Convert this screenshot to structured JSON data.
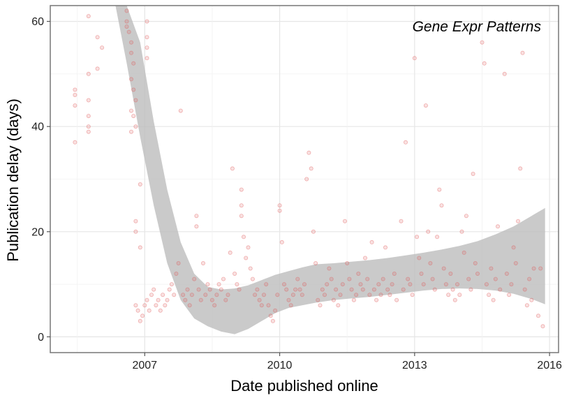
{
  "chart_data": {
    "type": "scatter",
    "title": "Gene Expr Patterns",
    "xlabel": "Date published online",
    "ylabel": "Publication delay (days)",
    "x_unit": "year",
    "xlim": [
      2004.9,
      2016.2
    ],
    "ylim": [
      -3,
      63
    ],
    "x_ticks": [
      {
        "value": 2007,
        "label": "2007"
      },
      {
        "value": 2010,
        "label": "2010"
      },
      {
        "value": 2013,
        "label": "2013"
      },
      {
        "value": 2016,
        "label": "2016"
      }
    ],
    "y_ticks": [
      {
        "value": 0,
        "label": "0"
      },
      {
        "value": 20,
        "label": "20"
      },
      {
        "value": 40,
        "label": "40"
      },
      {
        "value": 60,
        "label": "60"
      }
    ],
    "grid": true,
    "point_color": "#e05a5a",
    "band_color": "#bdbdbd",
    "points": [
      [
        2005.45,
        37
      ],
      [
        2005.45,
        44
      ],
      [
        2005.45,
        46
      ],
      [
        2005.45,
        47
      ],
      [
        2005.75,
        61
      ],
      [
        2005.75,
        50
      ],
      [
        2005.75,
        45
      ],
      [
        2005.75,
        42
      ],
      [
        2005.75,
        40
      ],
      [
        2005.75,
        39
      ],
      [
        2005.95,
        57
      ],
      [
        2005.95,
        51
      ],
      [
        2006.05,
        55
      ],
      [
        2006.6,
        62
      ],
      [
        2006.6,
        60
      ],
      [
        2006.6,
        59
      ],
      [
        2006.65,
        58
      ],
      [
        2006.7,
        56
      ],
      [
        2006.7,
        54
      ],
      [
        2006.75,
        52
      ],
      [
        2006.7,
        49
      ],
      [
        2006.75,
        47
      ],
      [
        2006.8,
        45
      ],
      [
        2006.7,
        43
      ],
      [
        2006.75,
        42
      ],
      [
        2006.8,
        40
      ],
      [
        2006.7,
        39
      ],
      [
        2006.8,
        22
      ],
      [
        2006.8,
        20
      ],
      [
        2006.9,
        29
      ],
      [
        2006.9,
        17
      ],
      [
        2007.05,
        60
      ],
      [
        2007.05,
        57
      ],
      [
        2007.05,
        55
      ],
      [
        2007.05,
        53
      ],
      [
        2006.8,
        6
      ],
      [
        2006.85,
        5
      ],
      [
        2006.9,
        3
      ],
      [
        2006.95,
        4
      ],
      [
        2007.0,
        6
      ],
      [
        2007.05,
        7
      ],
      [
        2007.1,
        5
      ],
      [
        2007.15,
        8
      ],
      [
        2007.2,
        9
      ],
      [
        2007.25,
        6
      ],
      [
        2007.3,
        7
      ],
      [
        2007.35,
        5
      ],
      [
        2007.4,
        8
      ],
      [
        2007.45,
        6
      ],
      [
        2007.5,
        7
      ],
      [
        2007.55,
        9
      ],
      [
        2007.6,
        10
      ],
      [
        2007.65,
        8
      ],
      [
        2007.7,
        12
      ],
      [
        2007.75,
        14
      ],
      [
        2007.8,
        43
      ],
      [
        2007.85,
        8
      ],
      [
        2007.9,
        7
      ],
      [
        2007.95,
        9
      ],
      [
        2008.0,
        6
      ],
      [
        2008.05,
        8
      ],
      [
        2008.1,
        11
      ],
      [
        2008.15,
        23
      ],
      [
        2008.15,
        21
      ],
      [
        2008.2,
        9
      ],
      [
        2008.25,
        7
      ],
      [
        2008.3,
        14
      ],
      [
        2008.35,
        8
      ],
      [
        2008.4,
        10
      ],
      [
        2008.45,
        9
      ],
      [
        2008.5,
        7
      ],
      [
        2008.55,
        6
      ],
      [
        2008.6,
        8
      ],
      [
        2008.65,
        10
      ],
      [
        2008.7,
        9
      ],
      [
        2008.75,
        11
      ],
      [
        2008.8,
        7
      ],
      [
        2008.85,
        8
      ],
      [
        2008.9,
        16
      ],
      [
        2008.95,
        32
      ],
      [
        2009.0,
        12
      ],
      [
        2009.05,
        10
      ],
      [
        2009.1,
        9
      ],
      [
        2009.15,
        28
      ],
      [
        2009.15,
        25
      ],
      [
        2009.15,
        23
      ],
      [
        2009.2,
        19
      ],
      [
        2009.25,
        15
      ],
      [
        2009.3,
        17
      ],
      [
        2009.35,
        13
      ],
      [
        2009.4,
        11
      ],
      [
        2009.45,
        8
      ],
      [
        2009.5,
        9
      ],
      [
        2009.55,
        7
      ],
      [
        2009.6,
        6
      ],
      [
        2009.65,
        8
      ],
      [
        2009.7,
        10
      ],
      [
        2009.75,
        6
      ],
      [
        2009.8,
        4
      ],
      [
        2009.85,
        3
      ],
      [
        2009.9,
        5
      ],
      [
        2009.95,
        8
      ],
      [
        2010.0,
        25
      ],
      [
        2010.0,
        24
      ],
      [
        2010.05,
        18
      ],
      [
        2010.1,
        10
      ],
      [
        2010.15,
        9
      ],
      [
        2010.2,
        7
      ],
      [
        2010.25,
        6
      ],
      [
        2010.3,
        8
      ],
      [
        2010.35,
        9
      ],
      [
        2010.4,
        11
      ],
      [
        2010.45,
        9
      ],
      [
        2010.5,
        8
      ],
      [
        2010.55,
        10
      ],
      [
        2010.6,
        30
      ],
      [
        2010.65,
        35
      ],
      [
        2010.7,
        32
      ],
      [
        2010.75,
        20
      ],
      [
        2010.8,
        14
      ],
      [
        2010.85,
        7
      ],
      [
        2010.9,
        6
      ],
      [
        2010.95,
        9
      ],
      [
        2011.0,
        8
      ],
      [
        2011.05,
        10
      ],
      [
        2011.1,
        13
      ],
      [
        2011.15,
        11
      ],
      [
        2011.2,
        7
      ],
      [
        2011.25,
        9
      ],
      [
        2011.3,
        6
      ],
      [
        2011.35,
        8
      ],
      [
        2011.4,
        10
      ],
      [
        2011.45,
        22
      ],
      [
        2011.5,
        14
      ],
      [
        2011.55,
        11
      ],
      [
        2011.6,
        9
      ],
      [
        2011.65,
        7
      ],
      [
        2011.7,
        8
      ],
      [
        2011.75,
        12
      ],
      [
        2011.8,
        10
      ],
      [
        2011.85,
        9
      ],
      [
        2011.9,
        15
      ],
      [
        2011.95,
        11
      ],
      [
        2012.0,
        8
      ],
      [
        2012.05,
        18
      ],
      [
        2012.1,
        9
      ],
      [
        2012.15,
        7
      ],
      [
        2012.2,
        10
      ],
      [
        2012.25,
        8
      ],
      [
        2012.3,
        11
      ],
      [
        2012.35,
        17
      ],
      [
        2012.4,
        9
      ],
      [
        2012.45,
        8
      ],
      [
        2012.5,
        10
      ],
      [
        2012.55,
        12
      ],
      [
        2012.6,
        7
      ],
      [
        2012.7,
        22
      ],
      [
        2012.75,
        9
      ],
      [
        2012.8,
        37
      ],
      [
        2012.85,
        11
      ],
      [
        2012.9,
        10
      ],
      [
        2012.95,
        8
      ],
      [
        2013.0,
        53
      ],
      [
        2013.05,
        19
      ],
      [
        2013.1,
        15
      ],
      [
        2013.15,
        12
      ],
      [
        2013.2,
        10
      ],
      [
        2013.25,
        44
      ],
      [
        2013.3,
        20
      ],
      [
        2013.35,
        14
      ],
      [
        2013.4,
        11
      ],
      [
        2013.45,
        9
      ],
      [
        2013.5,
        19
      ],
      [
        2013.55,
        28
      ],
      [
        2013.6,
        25
      ],
      [
        2013.65,
        13
      ],
      [
        2013.7,
        10
      ],
      [
        2013.75,
        8
      ],
      [
        2013.8,
        12
      ],
      [
        2013.85,
        9
      ],
      [
        2013.9,
        7
      ],
      [
        2013.95,
        10
      ],
      [
        2014.0,
        8
      ],
      [
        2014.05,
        20
      ],
      [
        2014.1,
        16
      ],
      [
        2014.15,
        23
      ],
      [
        2014.2,
        11
      ],
      [
        2014.25,
        9
      ],
      [
        2014.3,
        31
      ],
      [
        2014.35,
        14
      ],
      [
        2014.4,
        12
      ],
      [
        2014.5,
        56
      ],
      [
        2014.55,
        52
      ],
      [
        2014.6,
        10
      ],
      [
        2014.65,
        8
      ],
      [
        2014.7,
        13
      ],
      [
        2014.75,
        7
      ],
      [
        2014.8,
        11
      ],
      [
        2014.85,
        21
      ],
      [
        2014.9,
        9
      ],
      [
        2015.0,
        50
      ],
      [
        2015.05,
        12
      ],
      [
        2015.1,
        8
      ],
      [
        2015.15,
        10
      ],
      [
        2015.2,
        17
      ],
      [
        2015.25,
        14
      ],
      [
        2015.3,
        22
      ],
      [
        2015.35,
        32
      ],
      [
        2015.4,
        54
      ],
      [
        2015.45,
        9
      ],
      [
        2015.5,
        6
      ],
      [
        2015.55,
        11
      ],
      [
        2015.6,
        7
      ],
      [
        2015.65,
        13
      ],
      [
        2015.75,
        4
      ],
      [
        2015.8,
        13
      ],
      [
        2015.85,
        2
      ]
    ],
    "smooth_band": {
      "x": [
        2006.35,
        2006.6,
        2006.9,
        2007.2,
        2007.5,
        2007.8,
        2008.1,
        2008.4,
        2008.7,
        2009.0,
        2009.3,
        2009.6,
        2009.9,
        2010.2,
        2010.5,
        2010.8,
        2011.2,
        2011.6,
        2012.0,
        2012.4,
        2012.8,
        2013.2,
        2013.6,
        2014.0,
        2014.4,
        2014.8,
        2015.2,
        2015.6,
        2015.9
      ],
      "lower": [
        63,
        52,
        38,
        25,
        14,
        7,
        3.5,
        2,
        1,
        0.5,
        1.5,
        3,
        4.5,
        5.5,
        6,
        6.5,
        7,
        7.3,
        7.6,
        8,
        8.4,
        8.8,
        9.1,
        9.2,
        9.1,
        8.8,
        8.2,
        7.2,
        6.2
      ],
      "upper": [
        63,
        63,
        56,
        41,
        28,
        18,
        12,
        9.5,
        9,
        9.2,
        9.8,
        10.8,
        11.8,
        12.5,
        13.2,
        13.8,
        14,
        14.3,
        14.6,
        15,
        15.5,
        16,
        16.6,
        17.3,
        18.2,
        19.5,
        21,
        23,
        24.5
      ]
    }
  }
}
